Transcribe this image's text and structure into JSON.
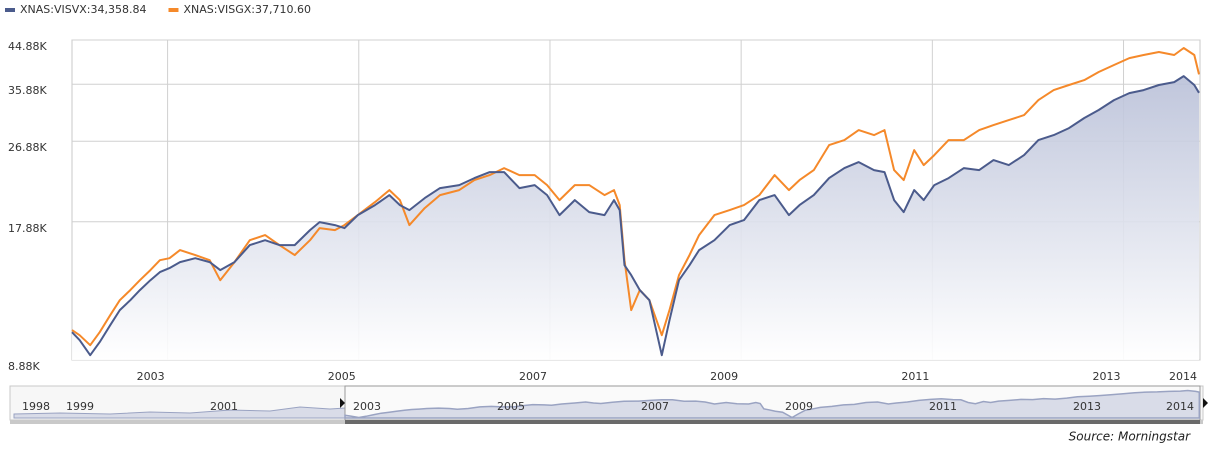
{
  "chart_data": {
    "type": "line",
    "log_scale": true,
    "grid": true,
    "legend": "top-left",
    "x": [
      2002,
      2002.08,
      2002.19,
      2002.29,
      2002.4,
      2002.5,
      2002.61,
      2002.71,
      2002.82,
      2002.92,
      2003.02,
      2003.13,
      2003.29,
      2003.44,
      2003.55,
      2003.7,
      2003.86,
      2004.02,
      2004.17,
      2004.33,
      2004.49,
      2004.59,
      2004.75,
      2004.85,
      2004.99,
      2005.17,
      2005.32,
      2005.43,
      2005.53,
      2005.69,
      2005.85,
      2006.05,
      2006.21,
      2006.37,
      2006.52,
      2006.68,
      2006.84,
      2006.97,
      2007.1,
      2007.26,
      2007.41,
      2007.57,
      2007.67,
      2007.73,
      2007.78,
      2007.85,
      2007.94,
      2008.04,
      2008.17,
      2008.25,
      2008.35,
      2008.46,
      2008.56,
      2008.72,
      2008.88,
      2009.03,
      2009.19,
      2009.35,
      2009.5,
      2009.61,
      2009.76,
      2009.92,
      2010.08,
      2010.23,
      2010.39,
      2010.5,
      2010.6,
      2010.7,
      2010.81,
      2010.91,
      2011.02,
      2011.17,
      2011.33,
      2011.49,
      2011.64,
      2011.8,
      2011.96,
      2012.11,
      2012.27,
      2012.43,
      2012.59,
      2012.74,
      2012.9,
      2013.06,
      2013.21,
      2013.37,
      2013.53,
      2013.63,
      2013.74,
      2013.79
    ],
    "series": [
      {
        "name": "XNAS:VISVX:34,358.84",
        "color": "#4b5b8c",
        "values": [
          10220,
          9820,
          9100,
          9720,
          10590,
          11430,
          12020,
          12650,
          13300,
          13860,
          14140,
          14580,
          14870,
          14580,
          14000,
          14580,
          15890,
          16290,
          15890,
          15890,
          17140,
          17850,
          17580,
          17320,
          18490,
          19450,
          20460,
          19450,
          18970,
          20160,
          21200,
          21530,
          22300,
          22990,
          22990,
          21200,
          21530,
          20460,
          18490,
          19950,
          18780,
          18490,
          19950,
          18970,
          14350,
          13650,
          12650,
          12020,
          9100,
          10860,
          13300,
          14350,
          15490,
          16290,
          17580,
          18030,
          19950,
          20460,
          18490,
          19450,
          20460,
          22300,
          23460,
          24190,
          23230,
          22990,
          19950,
          18780,
          20990,
          19950,
          21530,
          22300,
          23460,
          23230,
          24430,
          23820,
          25060,
          27040,
          27730,
          28730,
          30230,
          31480,
          33110,
          34300,
          34830,
          35730,
          36270,
          37390,
          35730,
          34360
        ]
      },
      {
        "name": "XNAS:VISGX:37,710.60",
        "color": "#f5892a",
        "values": [
          10330,
          10070,
          9570,
          10220,
          11140,
          12020,
          12650,
          13300,
          14000,
          14720,
          14870,
          15490,
          15100,
          14720,
          13300,
          14580,
          16290,
          16710,
          15890,
          15100,
          16290,
          17320,
          17140,
          17580,
          18490,
          19750,
          20990,
          19950,
          17580,
          19160,
          20460,
          20990,
          22080,
          22650,
          23460,
          22650,
          22650,
          21530,
          19950,
          21530,
          21530,
          20460,
          20990,
          19450,
          14720,
          11430,
          12650,
          12020,
          10070,
          11430,
          13650,
          15100,
          16710,
          18490,
          18970,
          19450,
          20460,
          22650,
          20990,
          22080,
          23230,
          26360,
          27040,
          28440,
          27730,
          28440,
          23230,
          22080,
          25700,
          23820,
          25060,
          27040,
          27040,
          28440,
          29170,
          29920,
          30690,
          33110,
          34830,
          35730,
          36640,
          38160,
          39540,
          40960,
          41590,
          42230,
          41590,
          43090,
          41590,
          37710
        ]
      }
    ],
    "xlim": [
      2002,
      2013.8
    ],
    "xticks": [
      2003,
      2005,
      2007,
      2009,
      2011,
      2013,
      2014
    ],
    "ylim": [
      8880,
      44880
    ],
    "yticks": [
      {
        "value": 8880,
        "label": "8.88K"
      },
      {
        "value": 17880,
        "label": "17.88K"
      },
      {
        "value": 26880,
        "label": "26.88K"
      },
      {
        "value": 35880,
        "label": "35.88K"
      },
      {
        "value": 44880,
        "label": "44.88K"
      }
    ]
  },
  "navigator": {
    "labels": [
      "1998",
      "1999",
      "2001",
      "2003",
      "2005",
      "2007",
      "2009",
      "2011",
      "2013",
      "2014"
    ]
  },
  "source": "Source: Morningstar"
}
